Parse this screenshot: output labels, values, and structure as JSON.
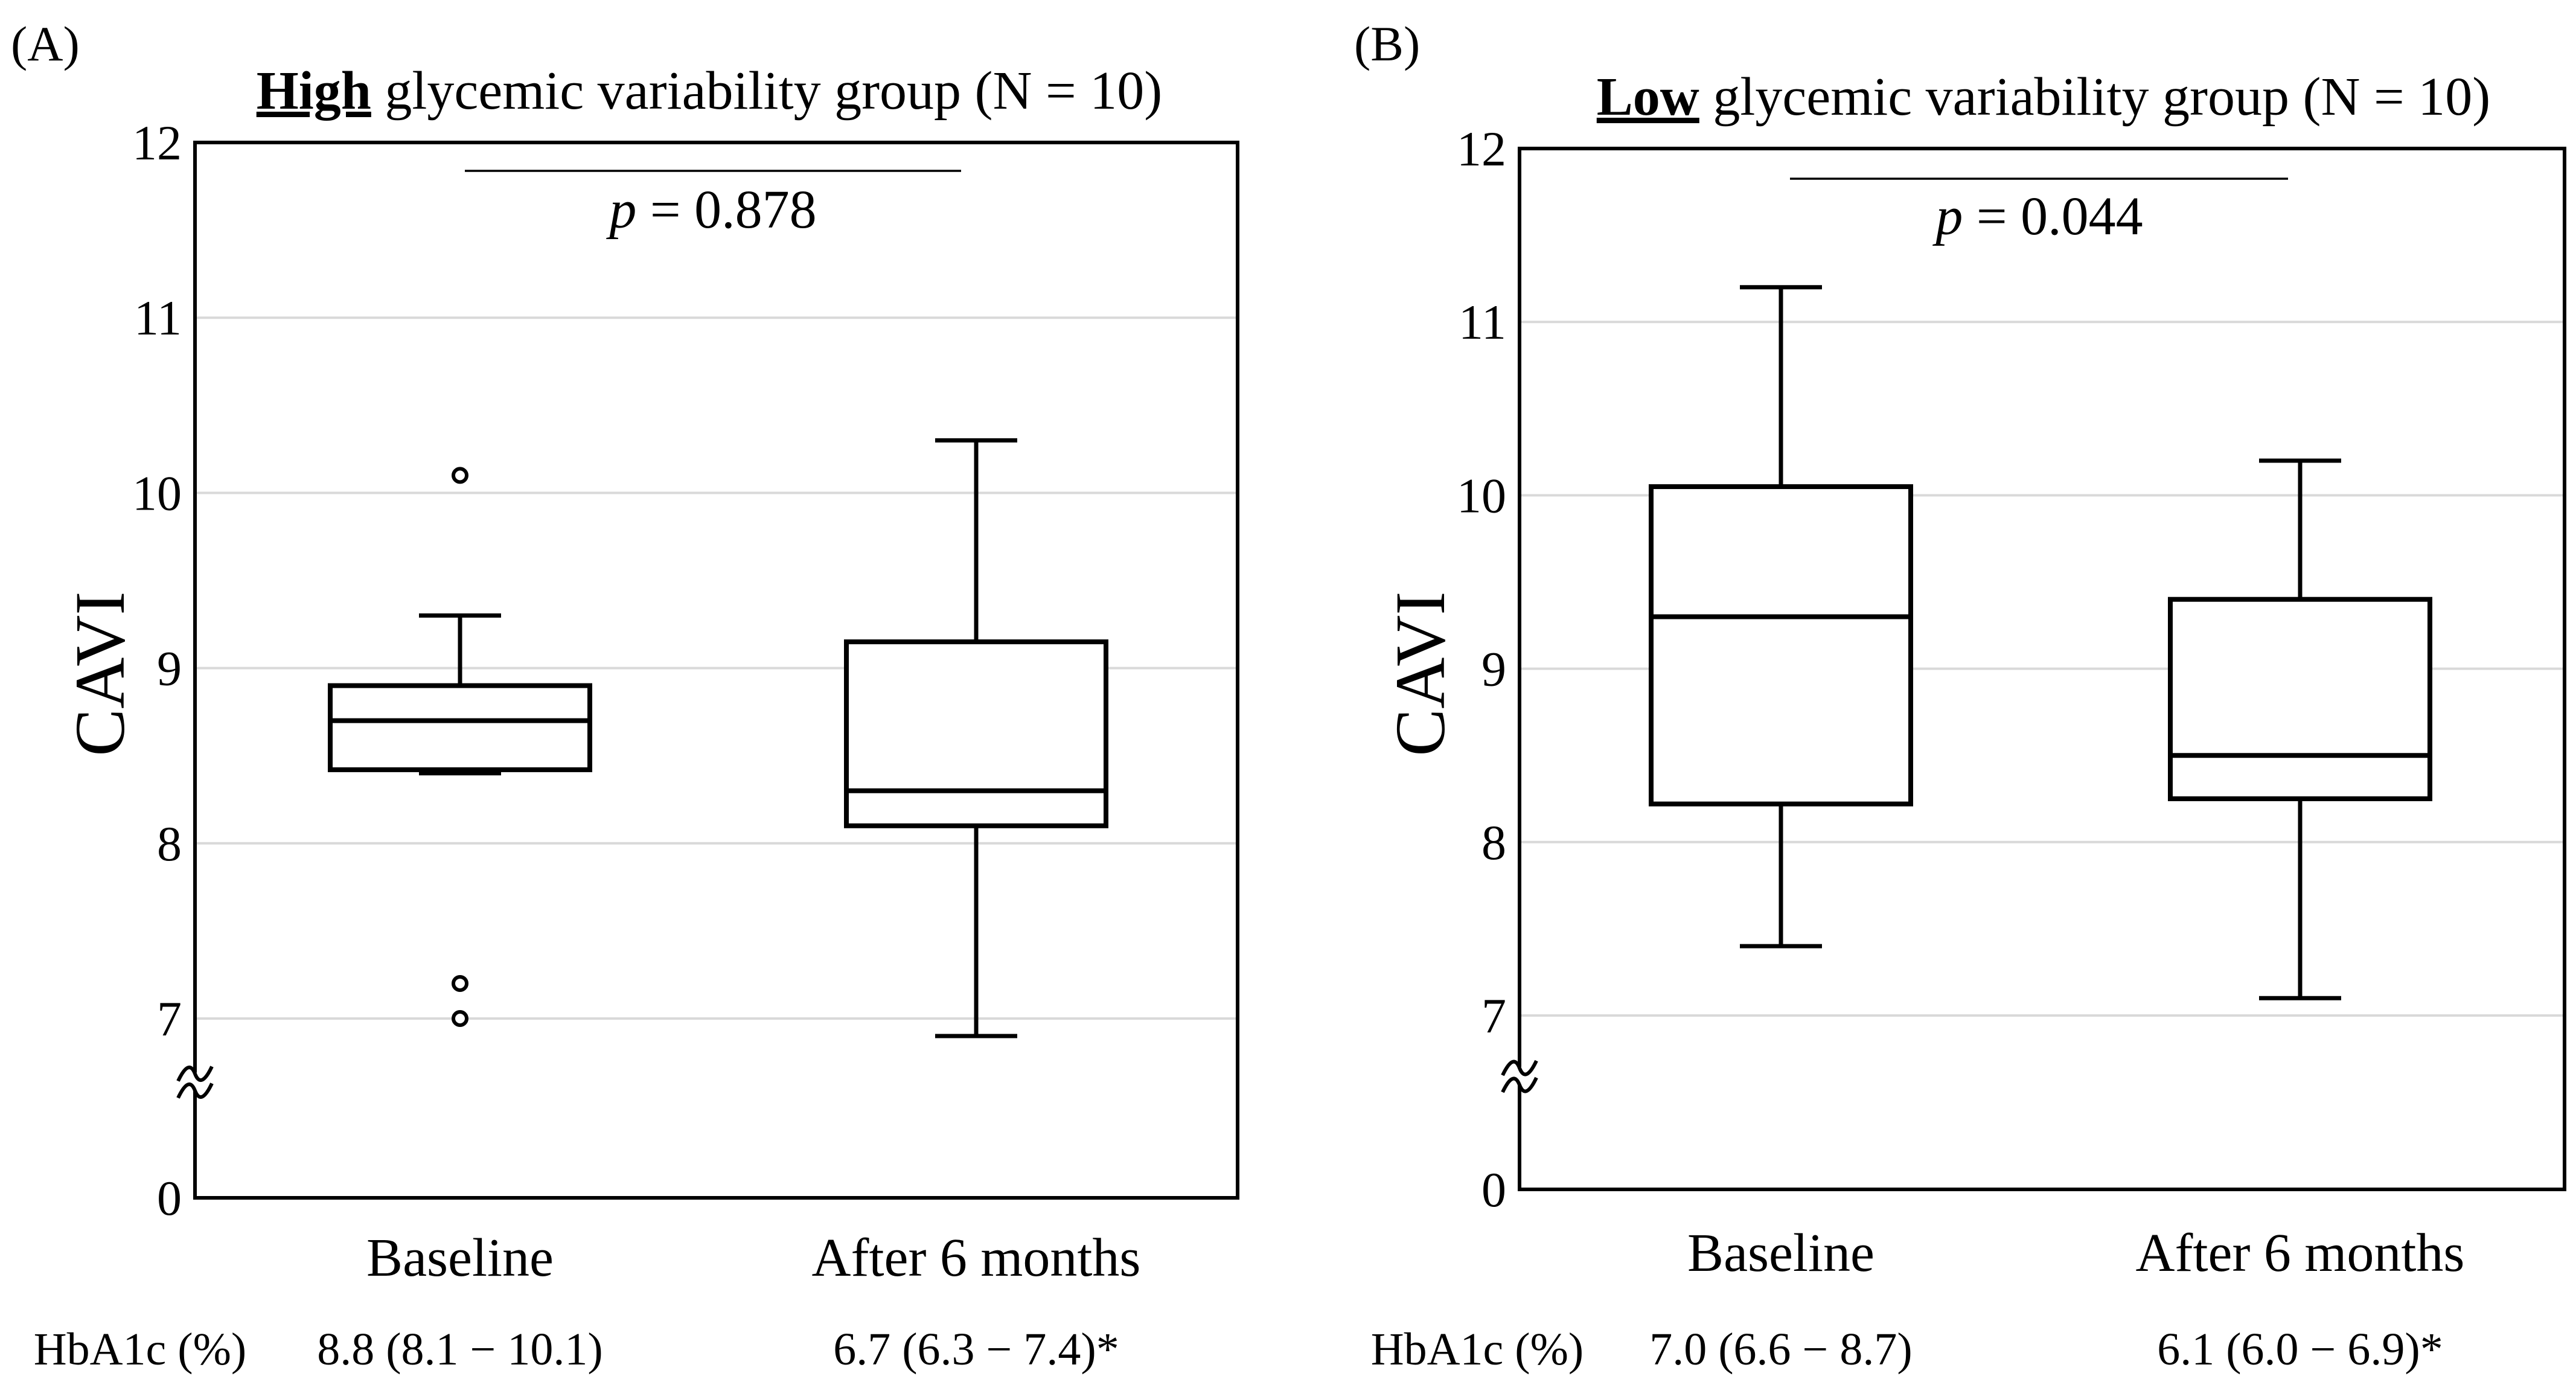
{
  "chart_data": [
    {
      "type": "box",
      "panel_label": "(A)",
      "title": {
        "bold": "High",
        "rest": " glycemic variability group (N = 10)"
      },
      "ylabel": "CAVI",
      "xlabel": "",
      "ylim": [
        7,
        12
      ],
      "axis_break": {
        "below": 7,
        "base_value": 0
      },
      "yticks": [
        7,
        8,
        9,
        10,
        11,
        12
      ],
      "ytick_labels": [
        "7",
        "8",
        "9",
        "10",
        "11",
        "12"
      ],
      "base_tick_label": "0",
      "grid": true,
      "categories": [
        "Baseline",
        "After 6 months"
      ],
      "boxes": [
        {
          "category": "Baseline",
          "whisker_low": 8.4,
          "q1": 8.42,
          "median": 8.7,
          "q3": 8.9,
          "whisker_high": 9.3,
          "outliers": [
            10.1,
            7.2,
            7.0
          ]
        },
        {
          "category": "After 6 months",
          "whisker_low": 6.9,
          "q1": 8.1,
          "median": 8.3,
          "q3": 9.15,
          "whisker_high": 10.3,
          "outliers": []
        }
      ],
      "p_annotation": {
        "symbol": "p",
        "rest": " = 0.878"
      },
      "hba1c": {
        "label": "HbA1c (%)",
        "values": [
          "8.8 (8.1 − 10.1)",
          "6.7 (6.3 − 7.4)*"
        ]
      }
    },
    {
      "type": "box",
      "panel_label": "(B)",
      "title": {
        "bold": "Low",
        "rest": " glycemic variability group (N = 10)"
      },
      "ylabel": "CAVI",
      "xlabel": "",
      "ylim": [
        7,
        12
      ],
      "axis_break": {
        "below": 7,
        "base_value": 0
      },
      "yticks": [
        7,
        8,
        9,
        10,
        11,
        12
      ],
      "ytick_labels": [
        "7",
        "8",
        "9",
        "10",
        "11",
        "12"
      ],
      "base_tick_label": "0",
      "grid": true,
      "categories": [
        "Baseline",
        "After 6 months"
      ],
      "boxes": [
        {
          "category": "Baseline",
          "whisker_low": 7.4,
          "q1": 8.22,
          "median": 9.3,
          "q3": 10.05,
          "whisker_high": 11.2,
          "outliers": []
        },
        {
          "category": "After 6 months",
          "whisker_low": 7.1,
          "q1": 8.25,
          "median": 8.5,
          "q3": 9.4,
          "whisker_high": 10.2,
          "outliers": []
        }
      ],
      "p_annotation": {
        "symbol": "p",
        "rest": " = 0.044"
      },
      "hba1c": {
        "label": "HbA1c (%)",
        "values": [
          "7.0 (6.6 − 8.7)",
          "6.1 (6.0 − 6.9)*"
        ]
      }
    }
  ]
}
